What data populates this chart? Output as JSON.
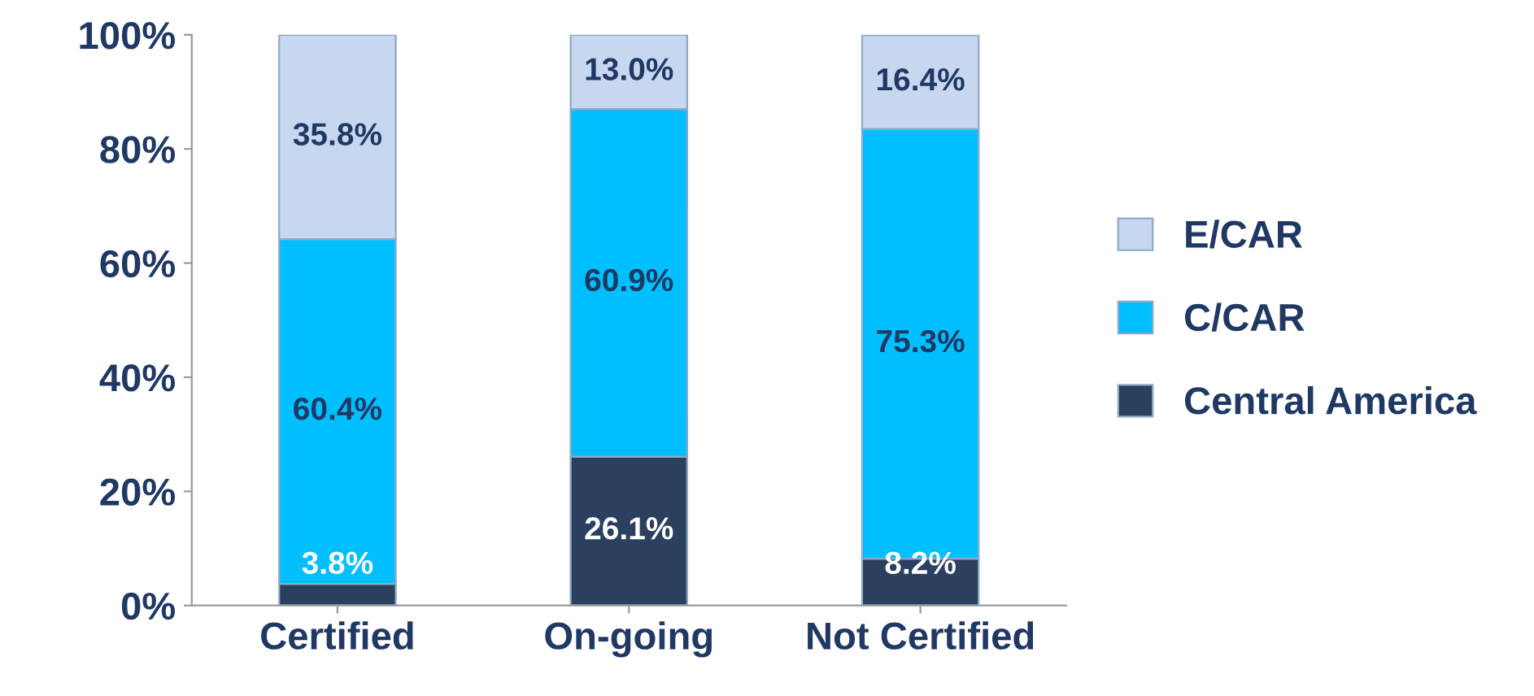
{
  "chart_data": {
    "type": "bar",
    "stacked": true,
    "categories": [
      "Certified",
      "On-going",
      "Not Certified"
    ],
    "series": [
      {
        "name": "Central America",
        "color": "#2b3f5e",
        "values": [
          3.8,
          26.1,
          8.2
        ],
        "value_labels": [
          "3.8%",
          "26.1%",
          "8.2%"
        ]
      },
      {
        "name": "C/CAR",
        "color": "#00bfff",
        "values": [
          60.4,
          60.9,
          75.3
        ],
        "value_labels": [
          "60.4%",
          "60.9%",
          "75.3%"
        ]
      },
      {
        "name": "E/CAR",
        "color": "#c6d7ef",
        "values": [
          35.8,
          13.0,
          16.4
        ],
        "value_labels": [
          "35.8%",
          "13.0%",
          "16.4%"
        ]
      }
    ],
    "ylim": [
      0,
      100
    ],
    "yticks": [
      {
        "value": 0,
        "label": "0%"
      },
      {
        "value": 20,
        "label": "20%"
      },
      {
        "value": 40,
        "label": "40%"
      },
      {
        "value": 60,
        "label": "60%"
      },
      {
        "value": 80,
        "label": "80%"
      },
      {
        "value": 100,
        "label": "100%"
      }
    ],
    "grid": false,
    "legend": "right"
  }
}
